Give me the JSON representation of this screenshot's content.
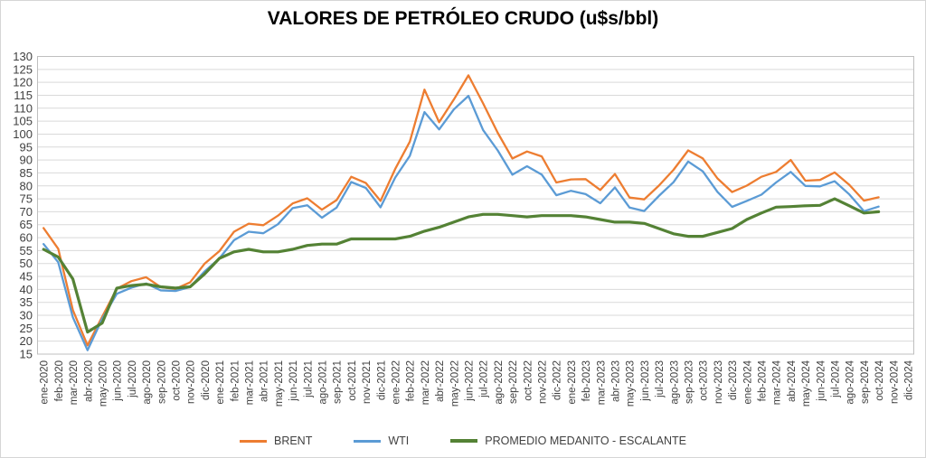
{
  "chart": {
    "title": "VALORES DE PETRÓLEO CRUDO (u$s/bbl)"
  },
  "chart_data": {
    "type": "line",
    "title": "VALORES DE PETRÓLEO CRUDO (u$s/bbl)",
    "ylabel": "",
    "xlabel": "",
    "y_axis": {
      "min": 15,
      "max": 130,
      "step": 5
    },
    "grid": true,
    "legend_position": "bottom",
    "axis_text_color": "#404040",
    "gridline_color": "#d9d9d9",
    "border_color": "#bfbfbf",
    "x_categories": [
      "ene-2020",
      "feb-2020",
      "mar-2020",
      "abr-2020",
      "may-2020",
      "jun-2020",
      "jul-2020",
      "ago-2020",
      "sep-2020",
      "oct-2020",
      "nov-2020",
      "dic-2020",
      "ene-2021",
      "feb-2021",
      "mar-2021",
      "abr-2021",
      "may-2021",
      "jun-2021",
      "jul-2021",
      "ago-2021",
      "sep-2021",
      "oct-2021",
      "nov-2021",
      "dic-2021",
      "ene-2022",
      "feb-2022",
      "mar-2022",
      "abr-2022",
      "may-2022",
      "jun-2022",
      "jul-2022",
      "ago-2022",
      "sep-2022",
      "oct-2022",
      "nov-2022",
      "dic-2022",
      "ene-2023",
      "feb-2023",
      "mar-2023",
      "abr-2023",
      "may-2023",
      "jun-2023",
      "jul-2023",
      "ago-2023",
      "sep-2023",
      "oct-2023",
      "nov-2023",
      "dic-2023",
      "ene-2024",
      "feb-2024",
      "mar-2024",
      "abr-2024",
      "may-2024",
      "jun-2024",
      "jul-2024",
      "ago-2024",
      "sep-2024",
      "oct-2024",
      "nov-2024",
      "dic-2024"
    ],
    "series": [
      {
        "name": "BRENT",
        "color": "#ED7D31",
        "values": [
          63.7,
          55.7,
          32.0,
          18.4,
          29.4,
          40.3,
          43.2,
          44.7,
          40.9,
          40.2,
          42.7,
          50.0,
          54.8,
          62.3,
          65.4,
          64.8,
          68.5,
          73.2,
          75.2,
          70.8,
          74.5,
          83.5,
          81.1,
          74.2,
          86.5,
          97.1,
          117.2,
          104.6,
          113.3,
          122.7,
          111.9,
          100.5,
          90.6,
          93.3,
          91.4,
          81.3,
          82.5,
          82.6,
          78.4,
          84.6,
          75.5,
          74.8,
          80.1,
          86.2,
          93.7,
          90.6,
          82.9,
          77.6,
          80.1,
          83.5,
          85.4,
          90.0,
          82.0,
          82.3,
          85.2,
          80.4,
          74.3,
          75.6,
          null,
          null
        ]
      },
      {
        "name": "WTI",
        "color": "#5B9BD5",
        "values": [
          57.5,
          50.5,
          29.2,
          16.5,
          28.6,
          38.3,
          40.7,
          42.3,
          39.6,
          39.4,
          40.9,
          47.0,
          52.0,
          59.0,
          62.3,
          61.7,
          65.2,
          71.4,
          72.5,
          67.7,
          71.6,
          81.5,
          79.2,
          71.7,
          83.2,
          91.6,
          108.5,
          101.8,
          109.5,
          114.8,
          101.6,
          93.7,
          84.3,
          87.6,
          84.4,
          76.4,
          78.1,
          76.8,
          73.3,
          79.4,
          71.6,
          70.3,
          76.1,
          81.4,
          89.4,
          85.6,
          77.7,
          71.9,
          74.2,
          76.6,
          81.3,
          85.4,
          80.0,
          79.8,
          81.8,
          76.7,
          70.2,
          72.0,
          null,
          null
        ]
      },
      {
        "name": "PROMEDIO MEDANITO - ESCALANTE",
        "color": "#548235",
        "values": [
          55.5,
          52.5,
          44.0,
          23.5,
          27.0,
          40.5,
          41.5,
          42.0,
          41.0,
          40.5,
          41.0,
          46.0,
          52.0,
          54.5,
          55.5,
          54.5,
          54.5,
          55.5,
          57.0,
          57.5,
          57.5,
          59.5,
          59.5,
          59.5,
          59.5,
          60.5,
          62.5,
          64.0,
          66.0,
          68.0,
          69.0,
          69.0,
          68.5,
          68.0,
          68.5,
          68.5,
          68.5,
          68.0,
          67.0,
          66.0,
          66.0,
          65.5,
          63.5,
          61.5,
          60.5,
          60.5,
          62.0,
          63.5,
          67.0,
          69.5,
          71.8,
          72.0,
          72.3,
          72.5,
          75.0,
          72.3,
          69.5,
          70.0,
          null,
          null
        ]
      }
    ]
  }
}
